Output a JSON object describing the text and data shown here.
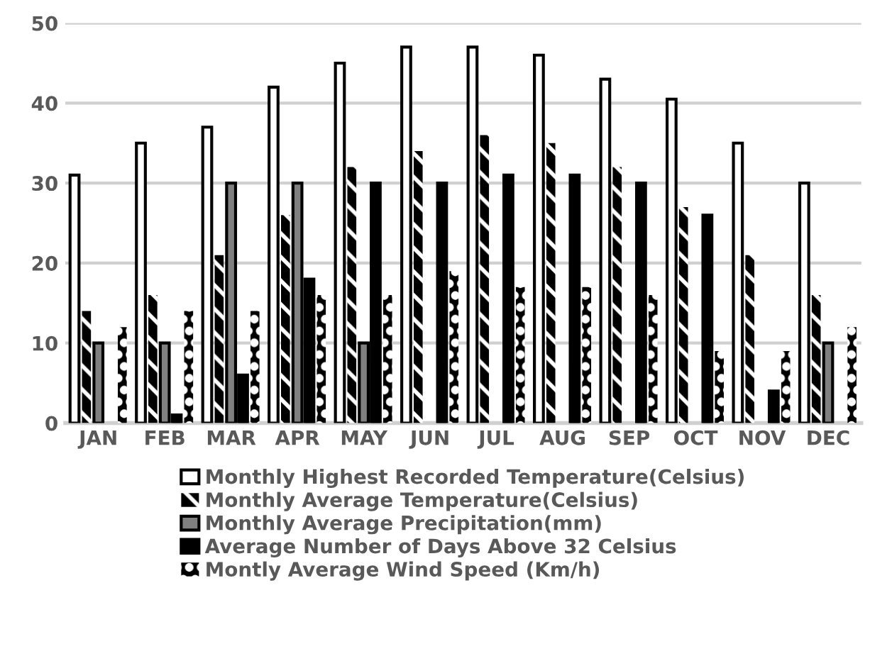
{
  "chart_data": {
    "type": "bar",
    "categories": [
      "JAN",
      "FEB",
      "MAR",
      "APR",
      "MAY",
      "JUN",
      "JUL",
      "AUG",
      "SEP",
      "OCT",
      "NOV",
      "DEC"
    ],
    "series": [
      {
        "name": "Monthly Highest Recorded Temperature(Celsius)",
        "color": "#ffffff",
        "values": [
          31,
          35,
          37,
          42,
          45,
          47,
          47,
          46,
          43,
          40.5,
          35,
          30
        ]
      },
      {
        "name": "Monthly Average Temperature(Celsius)",
        "color": "#000000",
        "values": [
          14,
          16,
          21,
          26,
          32,
          34,
          36,
          35,
          32,
          27,
          21,
          16
        ]
      },
      {
        "name": "Monthly Average Precipitation(mm)",
        "color": "#808080",
        "values": [
          10,
          10,
          30,
          30,
          10,
          0,
          0,
          0,
          0,
          0,
          0,
          10
        ]
      },
      {
        "name": "Average Number of Days Above 32 Celsius",
        "color": "#000000",
        "values": [
          0,
          1,
          6,
          18,
          30,
          30,
          31,
          31,
          30,
          26,
          4,
          0
        ]
      },
      {
        "name": "Montly Average Wind Speed (Km/h)",
        "color": "#000000",
        "values": [
          12,
          14,
          14,
          16,
          16,
          19,
          17,
          17,
          16,
          9,
          9,
          12
        ]
      }
    ],
    "ylim": [
      0,
      50
    ],
    "yticks": [
      0,
      10,
      20,
      30,
      40,
      50
    ],
    "grid": "y",
    "legend": "bottom"
  }
}
